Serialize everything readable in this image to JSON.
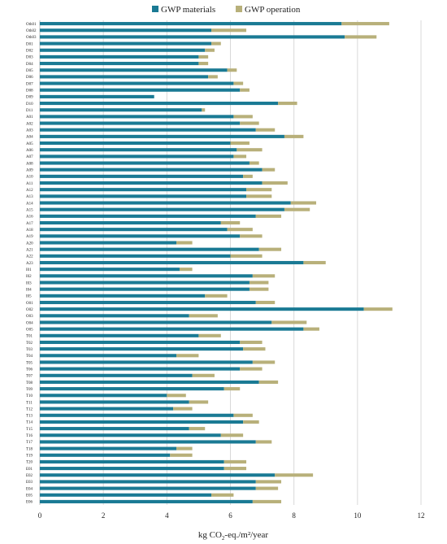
{
  "chart_data": {
    "type": "bar",
    "orientation": "horizontal",
    "stacked": true,
    "xlabel": {
      "pre": "kg CO",
      "sub": "2",
      "post": "-eq./m²/year"
    },
    "xlim": [
      0,
      12
    ],
    "xticks": [
      0,
      2,
      4,
      6,
      8,
      10,
      12
    ],
    "grid": "vertical",
    "legend_position": "top",
    "categories": [
      "Oth01",
      "Oth02",
      "Oth03",
      "D01",
      "D02",
      "D03",
      "D04",
      "D05",
      "D06",
      "D07",
      "D08",
      "D09",
      "D10",
      "D11",
      "A01",
      "A02",
      "A03",
      "A04",
      "A05",
      "A06",
      "A07",
      "A08",
      "A09",
      "A10",
      "A11",
      "A12",
      "A13",
      "A14",
      "A15",
      "A16",
      "A17",
      "A18",
      "A19",
      "A20",
      "A21",
      "A22",
      "A23",
      "I01",
      "I02",
      "I03",
      "I04",
      "I05",
      "O01",
      "O02",
      "O03",
      "O04",
      "O05",
      "T01",
      "T02",
      "T03",
      "T04",
      "T05",
      "T06",
      "T07",
      "T08",
      "T09",
      "T10",
      "T11",
      "T12",
      "T13",
      "T14",
      "T15",
      "T16",
      "T17",
      "T18",
      "T19",
      "T20",
      "E01",
      "E02",
      "E03",
      "E04",
      "E05",
      "E06"
    ],
    "series": [
      {
        "name": "GWP materials",
        "color": "#1a7a94",
        "values": [
          9.5,
          5.4,
          9.6,
          5.4,
          5.2,
          5.0,
          5.0,
          5.9,
          5.3,
          6.1,
          6.3,
          3.6,
          7.5,
          5.1,
          6.1,
          6.3,
          6.8,
          7.7,
          6.0,
          6.2,
          6.1,
          6.6,
          7.0,
          6.4,
          7.0,
          6.5,
          6.5,
          7.9,
          7.7,
          6.8,
          5.7,
          5.9,
          6.3,
          4.3,
          6.9,
          6.0,
          8.3,
          4.4,
          6.7,
          6.6,
          6.6,
          5.2,
          6.8,
          10.2,
          4.7,
          7.3,
          8.3,
          5.0,
          6.3,
          6.4,
          4.3,
          6.7,
          6.3,
          4.8,
          6.9,
          5.8,
          4.0,
          4.7,
          4.2,
          6.1,
          6.4,
          4.7,
          5.7,
          6.8,
          4.3,
          4.1,
          5.8,
          5.8,
          7.4,
          6.8,
          6.8,
          5.4,
          6.7
        ]
      },
      {
        "name": "GWP operation",
        "color": "#b8b07a",
        "values": [
          1.5,
          1.1,
          1.0,
          0.3,
          0.3,
          0.3,
          0.3,
          0.3,
          0.3,
          0.3,
          0.3,
          0.0,
          0.6,
          0.1,
          0.6,
          0.6,
          0.6,
          0.6,
          0.6,
          0.8,
          0.4,
          0.3,
          0.4,
          0.3,
          0.8,
          0.8,
          0.8,
          0.8,
          0.8,
          0.8,
          0.6,
          0.8,
          0.7,
          0.5,
          0.7,
          1.0,
          0.7,
          0.4,
          0.7,
          0.6,
          0.6,
          0.7,
          0.6,
          0.9,
          0.9,
          1.1,
          0.5,
          0.7,
          0.7,
          0.7,
          0.7,
          0.7,
          0.7,
          0.7,
          0.6,
          0.5,
          0.6,
          0.6,
          0.6,
          0.6,
          0.5,
          0.5,
          0.7,
          0.5,
          0.5,
          0.7,
          0.7,
          0.7,
          1.2,
          0.8,
          0.7,
          0.7,
          0.9
        ]
      }
    ]
  }
}
